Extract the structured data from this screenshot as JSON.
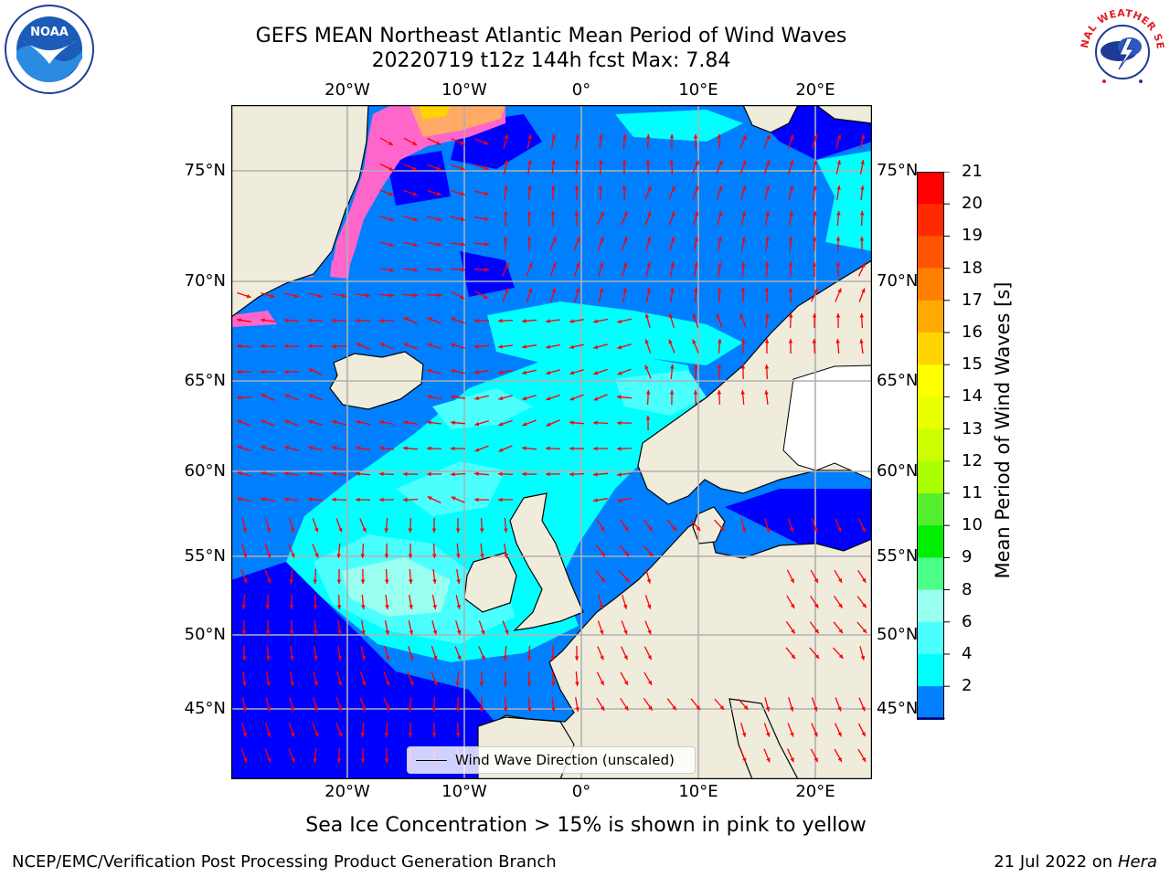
{
  "title": {
    "line1": "GEFS MEAN Northeast Atlantic Mean Period of Wind Waves",
    "line2": "20220719 t12z 144h fcst   Max: 7.84"
  },
  "logos": {
    "left": {
      "icon": "noaa-logo",
      "text": "NOAA"
    },
    "right": {
      "icon": "national-weather-service-logo",
      "text": "NATIONAL WEATHER SERVICE"
    }
  },
  "map": {
    "lon_labels_top": [
      "20°W",
      "10°W",
      "0°",
      "10°E",
      "20°E"
    ],
    "lon_labels_bottom": [
      "20°W",
      "10°W",
      "0°",
      "10°E",
      "20°E"
    ],
    "lat_labels_left": [
      "75°N",
      "70°N",
      "65°N",
      "60°N",
      "55°N",
      "50°N",
      "45°N"
    ],
    "lat_labels_right": [
      "75°N",
      "70°N",
      "65°N",
      "60°N",
      "55°N",
      "50°N",
      "45°N"
    ],
    "lon_range": [
      -30,
      25
    ],
    "lat_range": [
      41,
      78
    ],
    "grid_lons": [
      -20,
      -10,
      0,
      10,
      20
    ],
    "grid_lats": [
      75,
      70,
      65,
      60,
      55,
      50,
      45
    ],
    "colors": {
      "land": "#efecdc",
      "grid": "#b0b0b0",
      "arrow": "#ff0000"
    },
    "legend": "Wind Wave Direction (unscaled)"
  },
  "colorbar": {
    "title": "Mean Period of Wind Waves [s]",
    "ticks": [
      "21",
      "20",
      "19",
      "18",
      "17",
      "16",
      "15",
      "14",
      "13",
      "12",
      "11",
      "10",
      "9",
      "8",
      "6",
      "4",
      "2"
    ],
    "colors": [
      "#ff0000",
      "#ff2a00",
      "#ff5500",
      "#ff8000",
      "#ffaa00",
      "#ffd400",
      "#ffff00",
      "#eaff00",
      "#cbff00",
      "#aaff00",
      "#55ee2f",
      "#00ee00",
      "#4cff88",
      "#99ffee",
      "#4cffff",
      "#00ffff",
      "#007fff"
    ],
    "extend_color": "#0000ff"
  },
  "note": "Sea Ice Concentration > 15% is shown in pink to yellow",
  "footer": {
    "left": "NCEP/EMC/Verification Post Processing Product Generation Branch",
    "right_date": "21 Jul 2022 on",
    "right_host": "Hera"
  }
}
